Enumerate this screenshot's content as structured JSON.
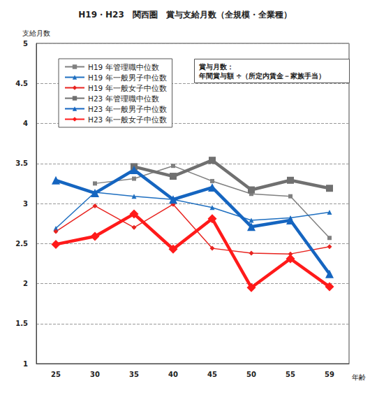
{
  "chart_data": {
    "type": "line",
    "title": "H19・H23　関西圏　賞与支給月数（全規模・全業種）",
    "y_label": "支給月数",
    "x_label": "年齢",
    "annotation": [
      "賞与月数：",
      "年間賞与額 ÷（所定内賃金－家族手当）"
    ],
    "categories": [
      "25",
      "30",
      "35",
      "40",
      "45",
      "50",
      "55",
      "59"
    ],
    "series": [
      {
        "name": "H19 年管理職中位数",
        "color": "#808080",
        "marker": "rect",
        "line_style": "solid",
        "values": [
          null,
          3.25,
          3.31,
          3.47,
          3.28,
          3.12,
          3.09,
          2.57
        ]
      },
      {
        "name": "H19 年一般男子中位数",
        "color": "#1f6fc0",
        "marker": "triangle",
        "line_style": "solid",
        "values": [
          2.69,
          3.14,
          3.09,
          3.05,
          2.95,
          2.79,
          2.82,
          2.89
        ]
      },
      {
        "name": "H19 年一般女子中位数",
        "color": "#e8231f",
        "marker": "diamond",
        "line_style": "solid",
        "values": [
          2.65,
          2.97,
          2.7,
          2.99,
          2.44,
          2.38,
          2.37,
          2.46
        ]
      },
      {
        "name": "H23 年管理職中位数",
        "color": "#707070",
        "marker": "rect",
        "line_style": "solid",
        "values": [
          null,
          null,
          3.46,
          3.34,
          3.54,
          3.17,
          3.29,
          3.19
        ]
      },
      {
        "name": "H23 年一般男子中位数",
        "color": "#1565c0",
        "marker": "triangle",
        "line_style": "solid",
        "values": [
          3.29,
          3.13,
          3.42,
          3.05,
          3.2,
          2.71,
          2.79,
          2.12
        ]
      },
      {
        "name": "H23 年一般女子中位数",
        "color": "#ff1a1a",
        "marker": "diamond",
        "line_style": "solid",
        "values": [
          2.49,
          2.59,
          2.87,
          2.43,
          2.81,
          1.95,
          2.31,
          1.96
        ]
      }
    ],
    "ylim": [
      1,
      5
    ],
    "yticks": [
      1,
      1.5,
      2,
      2.5,
      3,
      3.5,
      4,
      4.5,
      5
    ],
    "grid": true,
    "legend": "upper left"
  }
}
